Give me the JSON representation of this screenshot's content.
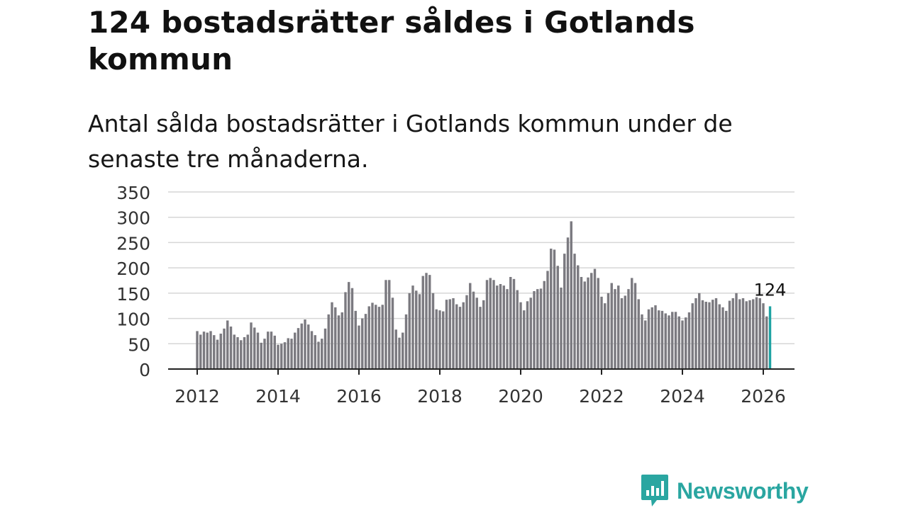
{
  "title": "124 bostadsrätter såldes i Gotlands kommun",
  "subtitle": "Antal sålda bostadsrätter i Gotlands kommun under de senaste tre månaderna.",
  "brand": {
    "name": "Newsworthy",
    "icon": "newsworthy-logo-icon",
    "color": "#2aa6a1"
  },
  "chart_data": {
    "type": "bar",
    "title": "124 bostadsrätter såldes i Gotlands kommun",
    "xlabel": "",
    "ylabel": "",
    "ylim": [
      0,
      350
    ],
    "y_ticks": [
      0,
      50,
      100,
      150,
      200,
      250,
      300,
      350
    ],
    "x_ticks": [
      "2012",
      "2014",
      "2016",
      "2018",
      "2020",
      "2022",
      "2024",
      "2026"
    ],
    "x_range": [
      2011.25,
      2026.75
    ],
    "grid": true,
    "bar_color": "#7b7a80",
    "highlight_color": "#1fa3a3",
    "first_month": "2012-01",
    "highlight": {
      "label": "124",
      "value": 124
    },
    "values": [
      75,
      68,
      74,
      72,
      75,
      67,
      58,
      70,
      80,
      96,
      84,
      68,
      63,
      57,
      63,
      68,
      92,
      82,
      72,
      52,
      60,
      74,
      74,
      66,
      48,
      50,
      53,
      61,
      60,
      72,
      81,
      90,
      98,
      88,
      75,
      67,
      54,
      60,
      80,
      108,
      132,
      122,
      106,
      112,
      152,
      172,
      160,
      115,
      86,
      100,
      109,
      124,
      131,
      127,
      123,
      127,
      176,
      176,
      141,
      78,
      62,
      72,
      108,
      150,
      165,
      155,
      148,
      184,
      190,
      186,
      150,
      118,
      116,
      114,
      137,
      138,
      140,
      128,
      123,
      132,
      146,
      170,
      153,
      141,
      123,
      136,
      176,
      180,
      176,
      165,
      168,
      165,
      158,
      182,
      178,
      156,
      132,
      116,
      134,
      141,
      154,
      158,
      159,
      174,
      194,
      238,
      236,
      204,
      161,
      228,
      260,
      292,
      228,
      205,
      182,
      173,
      181,
      190,
      198,
      180,
      143,
      130,
      150,
      170,
      158,
      165,
      140,
      145,
      158,
      180,
      170,
      138,
      108,
      96,
      118,
      122,
      126,
      116,
      115,
      110,
      106,
      113,
      113,
      104,
      96,
      102,
      112,
      130,
      140,
      150,
      136,
      133,
      132,
      137,
      140,
      128,
      122,
      115,
      135,
      140,
      150,
      138,
      140,
      134,
      136,
      138,
      142,
      140,
      130,
      104,
      124
    ]
  }
}
